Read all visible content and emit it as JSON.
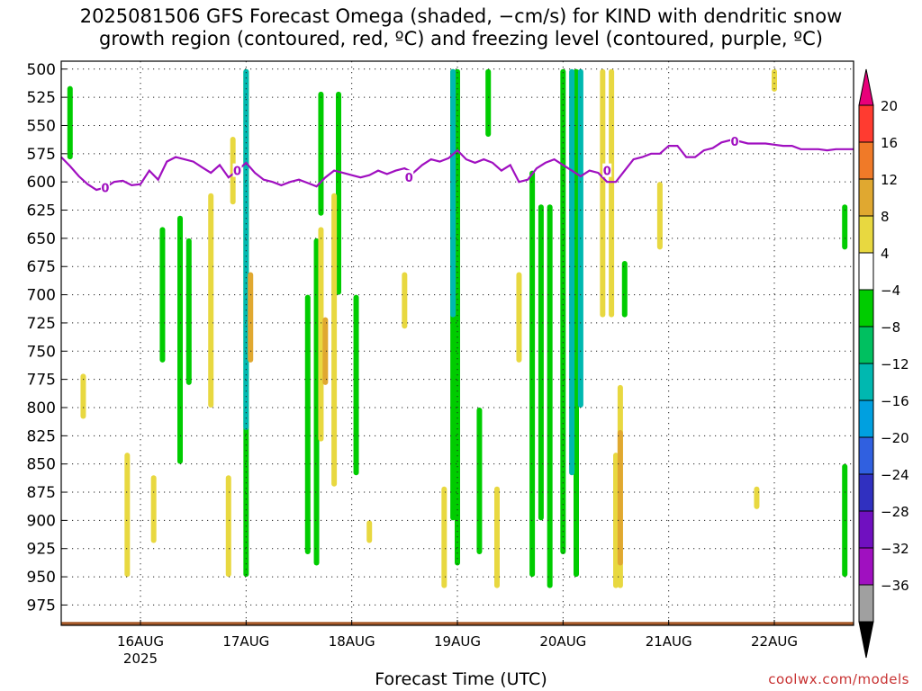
{
  "title_lines": [
    "2025081506 GFS Forecast Omega (shaded, −cm/s) for KIND with dendritic snow",
    "growth region (contoured, red, ºC) and freezing level (contoured, purple, ºC)"
  ],
  "credit": "coolwx.com/models",
  "chart_data": {
    "type": "heatmap",
    "xlabel": "Forecast Time (UTC)",
    "ylabel": "",
    "y_scale": "pressure",
    "y_ticks": [
      500,
      525,
      550,
      575,
      600,
      625,
      650,
      675,
      700,
      725,
      750,
      775,
      800,
      825,
      850,
      875,
      900,
      925,
      950,
      975
    ],
    "ylim": [
      993,
      493
    ],
    "x_ticks": [
      {
        "t": 18,
        "label": "16AUG",
        "sub": "2025"
      },
      {
        "t": 42,
        "label": "17AUG",
        "sub": ""
      },
      {
        "t": 66,
        "label": "18AUG",
        "sub": ""
      },
      {
        "t": 90,
        "label": "19AUG",
        "sub": ""
      },
      {
        "t": 114,
        "label": "20AUG",
        "sub": ""
      },
      {
        "t": 138,
        "label": "21AUG",
        "sub": ""
      },
      {
        "t": 162,
        "label": "22AUG",
        "sub": ""
      }
    ],
    "xlim": [
      0,
      180
    ],
    "grid": true,
    "colorbar": {
      "labels": [
        20,
        16,
        12,
        8,
        4,
        -4,
        -8,
        -12,
        -16,
        -20,
        -24,
        -28,
        -32,
        -36
      ],
      "colors": [
        "#ff3b30",
        "#f07a28",
        "#e0a830",
        "#e8d840",
        "#ffffff",
        "#00cc00",
        "#00c060",
        "#00b8b0",
        "#00a0e0",
        "#3060e0",
        "#3030c0",
        "#7010c0",
        "#a010c0",
        "#a0a0a0"
      ],
      "top_color": "#e8007a",
      "bottom_color": "#000000"
    },
    "omega_series": [
      {
        "name": "ascent −8 to −12",
        "color": "#00cc00",
        "cells": [
          [
            2,
            515,
            580
          ],
          [
            23,
            640,
            760
          ],
          [
            27,
            630,
            850
          ],
          [
            29,
            650,
            780
          ],
          [
            42,
            500,
            950
          ],
          [
            56,
            700,
            930
          ],
          [
            58,
            650,
            940
          ],
          [
            59,
            520,
            630
          ],
          [
            63,
            520,
            700
          ],
          [
            67,
            700,
            860
          ],
          [
            89,
            500,
            900
          ],
          [
            90,
            500,
            940
          ],
          [
            95,
            800,
            930
          ],
          [
            97,
            500,
            560
          ],
          [
            107,
            590,
            950
          ],
          [
            109,
            620,
            900
          ],
          [
            111,
            620,
            960
          ],
          [
            114,
            500,
            930
          ],
          [
            117,
            500,
            950
          ],
          [
            128,
            670,
            720
          ],
          [
            178,
            620,
            660
          ],
          [
            178,
            850,
            950
          ]
        ]
      },
      {
        "name": "ascent −12 to −16",
        "color": "#00b8b0",
        "cells": [
          [
            42,
            500,
            820
          ],
          [
            89,
            500,
            720
          ],
          [
            116,
            500,
            860
          ],
          [
            118,
            500,
            800
          ]
        ]
      },
      {
        "name": "descent 4 to 8",
        "color": "#e8d840",
        "cells": [
          [
            5,
            770,
            810
          ],
          [
            15,
            840,
            950
          ],
          [
            21,
            860,
            920
          ],
          [
            34,
            610,
            800
          ],
          [
            38,
            860,
            950
          ],
          [
            39,
            560,
            620
          ],
          [
            59,
            640,
            830
          ],
          [
            62,
            610,
            870
          ],
          [
            70,
            900,
            920
          ],
          [
            78,
            680,
            730
          ],
          [
            87,
            870,
            960
          ],
          [
            99,
            870,
            960
          ],
          [
            104,
            680,
            760
          ],
          [
            123,
            500,
            720
          ],
          [
            125,
            500,
            720
          ],
          [
            126,
            840,
            960
          ],
          [
            127,
            780,
            960
          ],
          [
            136,
            600,
            660
          ],
          [
            158,
            870,
            890
          ],
          [
            162,
            500,
            520
          ]
        ]
      },
      {
        "name": "descent 8 to 12",
        "color": "#e0a830",
        "cells": [
          [
            43,
            680,
            760
          ],
          [
            60,
            720,
            780
          ],
          [
            127,
            820,
            940
          ]
        ]
      }
    ],
    "freezing_level": {
      "name": "freezing level 0ºC",
      "color": "#a010c0",
      "label": "0",
      "x": [
        0,
        2,
        4,
        6,
        8,
        10,
        12,
        14,
        16,
        18,
        20,
        22,
        24,
        26,
        28,
        30,
        32,
        34,
        36,
        38,
        40,
        42,
        44,
        46,
        48,
        50,
        52,
        54,
        56,
        58,
        60,
        62,
        64,
        66,
        68,
        70,
        72,
        74,
        76,
        78,
        80,
        82,
        84,
        86,
        88,
        90,
        92,
        94,
        96,
        98,
        100,
        102,
        104,
        106,
        108,
        110,
        112,
        114,
        116,
        118,
        120,
        122,
        124,
        126,
        128,
        130,
        132,
        134,
        136,
        138,
        140,
        142,
        144,
        146,
        148,
        150,
        152,
        154,
        156,
        158,
        160,
        162,
        164,
        166,
        168,
        170,
        172,
        174,
        176,
        178,
        180
      ],
      "y": [
        578,
        586,
        595,
        602,
        607,
        605,
        600,
        599,
        603,
        602,
        590,
        598,
        582,
        578,
        580,
        582,
        587,
        592,
        585,
        596,
        590,
        583,
        592,
        598,
        600,
        603,
        600,
        598,
        601,
        604,
        596,
        590,
        592,
        594,
        596,
        594,
        590,
        593,
        590,
        588,
        592,
        585,
        580,
        582,
        579,
        572,
        580,
        583,
        580,
        583,
        590,
        585,
        600,
        598,
        588,
        583,
        580,
        585,
        590,
        595,
        590,
        592,
        600,
        600,
        590,
        580,
        578,
        575,
        575,
        568,
        568,
        578,
        578,
        572,
        570,
        565,
        563,
        564,
        566,
        566,
        566,
        567,
        568,
        568,
        571,
        571,
        571,
        572,
        571,
        571,
        571
      ],
      "contour_labels": [
        [
          10,
          605
        ],
        [
          40,
          590
        ],
        [
          79,
          596
        ],
        [
          124,
          590
        ],
        [
          153,
          564
        ]
      ]
    },
    "ground": {
      "name": "below ground",
      "color": "#a65a2a",
      "pressure": 990
    }
  }
}
